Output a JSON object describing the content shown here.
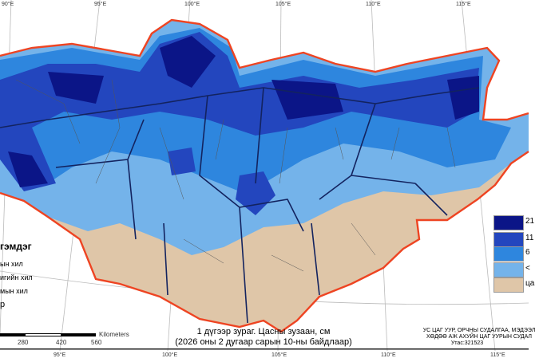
{
  "lon_top": [
    "90°E",
    "95°E",
    "100°E",
    "105°E",
    "110°E",
    "115°E"
  ],
  "lon_bottom": [
    "95°E",
    "100°E",
    "105°E",
    "110°E",
    "115°E"
  ],
  "legend_left": {
    "title": "гэмдэг",
    "items": [
      "ын хил",
      "игийн хил",
      "мын хил",
      "р"
    ]
  },
  "legend_right": [
    {
      "label": "21",
      "color": "#0b1587"
    },
    {
      "label": "11",
      "color": "#2346be"
    },
    {
      "label": "6",
      "color": "#2e86de"
    },
    {
      "label": "<",
      "color": "#74b3ea"
    },
    {
      "label": "ца",
      "color": "#dfc6a8"
    }
  ],
  "scale": {
    "ticks": [
      "280",
      "420",
      "560"
    ],
    "unit": "Kilometers"
  },
  "title": {
    "line1": "1 дүгээр зураг. Цасны зузаан, см",
    "line2": "(2026 оны 2 дугаар сарын 10-ны байдлаар)"
  },
  "org": {
    "line1": "УС ЦАГ УУР, ОРЧНЫ СУДАЛГАА, МЭДЭЭЛ",
    "line2": "ХӨДӨӨ АЖ АХУЙН ЦАГ УУРЫН СУДАЛ",
    "phone": "Утас:321523"
  },
  "colors": {
    "border": "#ee4422",
    "aimag": "#13235f"
  }
}
